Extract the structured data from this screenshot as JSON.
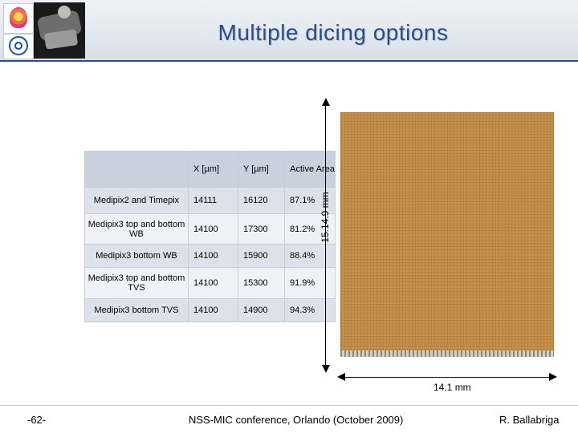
{
  "slide": {
    "title": "Multiple dicing options",
    "footer": {
      "page_number": "-62-",
      "conference": "NSS-MIC conference, Orlando (October 2009)",
      "author": "R. Ballabriga"
    }
  },
  "table": {
    "headers": [
      "",
      "X [µm]",
      "Y [µm]",
      "Active Area"
    ],
    "rows": [
      {
        "name": "Medipix2 and Timepix",
        "x": "14111",
        "y": "16120",
        "area": "87.1%"
      },
      {
        "name": "Medipix3 top and bottom WB",
        "x": "14100",
        "y": "17300",
        "area": "81.2%"
      },
      {
        "name": "Medipix3 bottom WB",
        "x": "14100",
        "y": "15900",
        "area": "88.4%"
      },
      {
        "name": "Medipix3 top and bottom TVS",
        "x": "14100",
        "y": "15300",
        "area": "91.9%"
      },
      {
        "name": "Medipix3 bottom TVS",
        "x": "14100",
        "y": "14900",
        "area": "94.3%"
      }
    ]
  },
  "dimensions": {
    "vertical": "15.14.9 mm",
    "horizontal": "14.1 mm"
  },
  "colors": {
    "title": "#2b4e86",
    "chip": "#c4914c",
    "header_row": "#c9d1de"
  }
}
